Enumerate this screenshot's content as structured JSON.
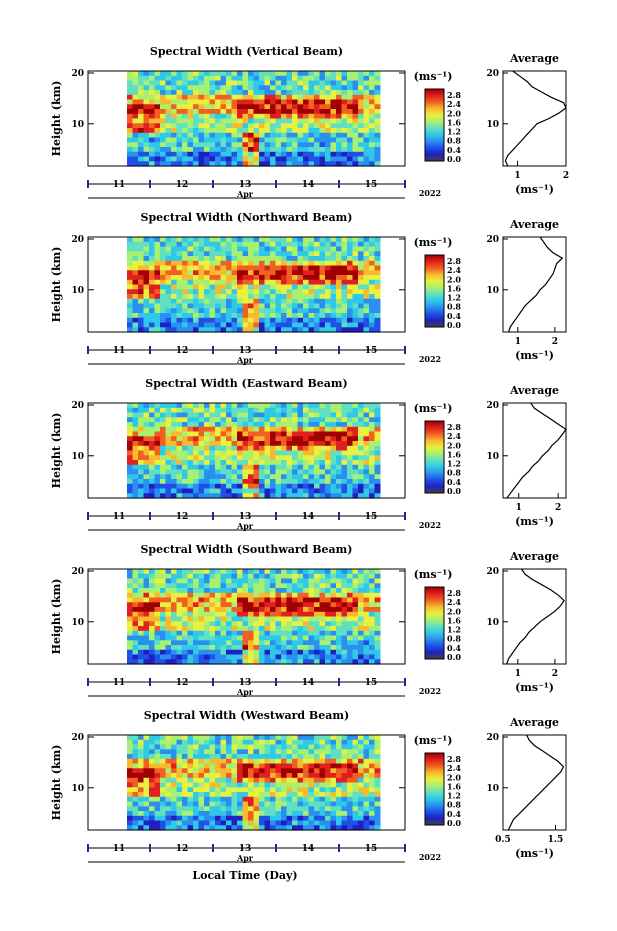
{
  "chart_data": {
    "type": "heatmap",
    "title": "",
    "shared_xlabel": "Local Time (Day)",
    "x_ticks": [
      "11",
      "12",
      "13",
      "14",
      "15"
    ],
    "x_month": "Apr",
    "x_year": "2022",
    "ylabel": "Height (km)",
    "ylim": [
      2,
      20
    ],
    "y_ticks": [
      "20",
      "10"
    ],
    "colorbar": {
      "unit": "(ms⁻¹)",
      "range": [
        0,
        2.8
      ],
      "colors": [
        "#404040",
        "#2020c0",
        "#2050e8",
        "#2a90f0",
        "#30c8e8",
        "#60e0c0",
        "#a8f070",
        "#e8f040",
        "#f8b830",
        "#f06020",
        "#e02020",
        "#a00000"
      ]
    },
    "panels": [
      {
        "title": "Spectral Width (Vertical Beam)",
        "colorbar_ticks": [
          "2.8",
          "2.4",
          "2.0",
          "1.6",
          "1.2",
          "0.8",
          "0.4",
          "0.0"
        ],
        "average": {
          "title": "Average",
          "xlim": [
            0.7,
            2.0
          ],
          "x_ticks": [
            "1",
            "2"
          ],
          "xlabel": "(ms⁻¹)",
          "profile": {
            "height": [
              2,
              3,
              4,
              5,
              6,
              7,
              8,
              9,
              10,
              11,
              12,
              13,
              14,
              15,
              16,
              17,
              18,
              19,
              20
            ],
            "value": [
              0.8,
              0.75,
              0.8,
              0.9,
              1.0,
              1.1,
              1.2,
              1.3,
              1.4,
              1.65,
              1.85,
              2.0,
              1.95,
              1.7,
              1.5,
              1.3,
              1.2,
              1.05,
              0.9
            ]
          }
        }
      },
      {
        "title": "Spectral Width (Northward Beam)",
        "colorbar_ticks": [
          "2.8",
          "2.4",
          "2.0",
          "1.6",
          "1.2",
          "0.8",
          "0.4",
          "0.0"
        ],
        "average": {
          "title": "Average",
          "xlim": [
            0.6,
            2.3
          ],
          "x_ticks": [
            "1",
            "2"
          ],
          "xlabel": "(ms⁻¹)",
          "profile": {
            "height": [
              2,
              3,
              4,
              5,
              6,
              7,
              8,
              9,
              10,
              11,
              12,
              13,
              14,
              15,
              16,
              17,
              18,
              19,
              20
            ],
            "value": [
              0.75,
              0.8,
              0.9,
              1.0,
              1.1,
              1.2,
              1.35,
              1.5,
              1.6,
              1.75,
              1.85,
              1.95,
              2.0,
              2.05,
              2.2,
              1.95,
              1.8,
              1.7,
              1.6
            ]
          }
        }
      },
      {
        "title": "Spectral Width (Eastward Beam)",
        "colorbar_ticks": [
          "2.8",
          "2.4",
          "2.0",
          "1.6",
          "1.2",
          "0.8",
          "0.4",
          "0.0"
        ],
        "average": {
          "title": "Average",
          "xlim": [
            0.6,
            2.2
          ],
          "x_ticks": [
            "1",
            "2"
          ],
          "xlabel": "(ms⁻¹)",
          "profile": {
            "height": [
              2,
              3,
              4,
              5,
              6,
              7,
              8,
              9,
              10,
              11,
              12,
              13,
              14,
              15,
              16,
              17,
              18,
              19,
              20
            ],
            "value": [
              0.7,
              0.8,
              0.9,
              1.0,
              1.1,
              1.25,
              1.35,
              1.5,
              1.6,
              1.75,
              1.85,
              2.0,
              2.1,
              2.2,
              2.0,
              1.8,
              1.6,
              1.4,
              1.3
            ]
          }
        }
      },
      {
        "title": "Spectral Width (Southward Beam)",
        "colorbar_ticks": [
          "2.8",
          "2.4",
          "2.0",
          "1.6",
          "1.2",
          "0.8",
          "0.4",
          "0.0"
        ],
        "average": {
          "title": "Average",
          "xlim": [
            0.6,
            2.3
          ],
          "x_ticks": [
            "1",
            "2"
          ],
          "xlabel": "(ms⁻¹)",
          "profile": {
            "height": [
              2,
              3,
              4,
              5,
              6,
              7,
              8,
              9,
              10,
              11,
              12,
              13,
              14,
              15,
              16,
              17,
              18,
              19,
              20
            ],
            "value": [
              0.7,
              0.75,
              0.85,
              0.95,
              1.05,
              1.2,
              1.3,
              1.45,
              1.6,
              1.8,
              2.0,
              2.15,
              2.25,
              2.1,
              1.9,
              1.65,
              1.4,
              1.2,
              1.1
            ]
          }
        }
      },
      {
        "title": "Spectral Width (Westward Beam)",
        "colorbar_ticks": [
          "2.8",
          "2.4",
          "2.0",
          "1.6",
          "1.2",
          "0.8",
          "0.4",
          "0.0"
        ],
        "average": {
          "title": "Average",
          "xlim": [
            0.5,
            1.7
          ],
          "x_ticks": [
            "0.5",
            "1.5"
          ],
          "xlabel": "(ms⁻¹)",
          "profile": {
            "height": [
              2,
              3,
              4,
              5,
              6,
              7,
              8,
              9,
              10,
              11,
              12,
              13,
              14,
              15,
              16,
              17,
              18,
              19,
              20
            ],
            "value": [
              0.6,
              0.65,
              0.7,
              0.8,
              0.9,
              1.0,
              1.1,
              1.2,
              1.3,
              1.4,
              1.5,
              1.6,
              1.65,
              1.55,
              1.4,
              1.25,
              1.1,
              1.0,
              0.95
            ]
          }
        }
      }
    ]
  }
}
